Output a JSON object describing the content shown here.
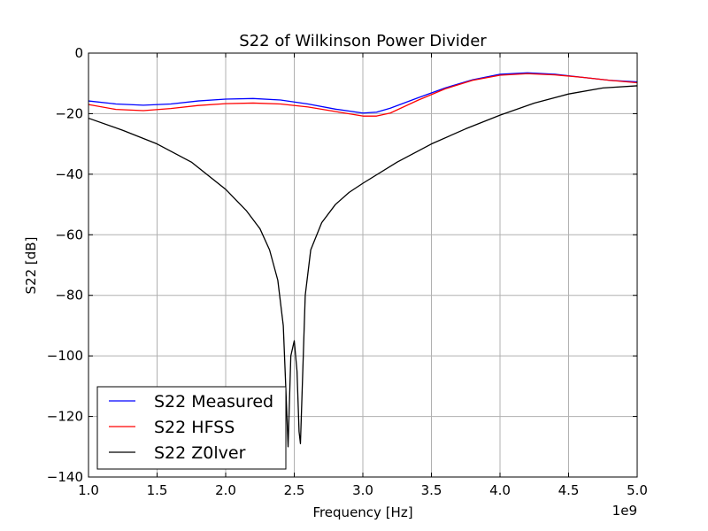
{
  "chart_data": {
    "type": "line",
    "title": "S22 of Wilkinson Power Divider",
    "xlabel": "Frequency [Hz]",
    "ylabel": "S22 [dB]",
    "x_offset_label": "1e9",
    "xlim": [
      1.0,
      5.0
    ],
    "ylim": [
      -140,
      0
    ],
    "x_ticks": [
      1.0,
      1.5,
      2.0,
      2.5,
      3.0,
      3.5,
      4.0,
      4.5,
      5.0
    ],
    "x_tick_labels": [
      "1.0",
      "1.5",
      "2.0",
      "2.5",
      "3.0",
      "3.5",
      "4.0",
      "4.5",
      "5.0"
    ],
    "y_ticks": [
      0,
      -20,
      -40,
      -60,
      -80,
      -100,
      -120,
      -140
    ],
    "y_tick_labels": [
      "0",
      "−20",
      "−40",
      "−60",
      "−80",
      "−100",
      "−120",
      "−140"
    ],
    "grid": true,
    "legend_position": "lower-left",
    "series": [
      {
        "name": "S22 Measured",
        "color": "#0000ff",
        "x": [
          1.0,
          1.2,
          1.4,
          1.6,
          1.8,
          2.0,
          2.2,
          2.4,
          2.6,
          2.8,
          3.0,
          3.1,
          3.2,
          3.4,
          3.6,
          3.8,
          4.0,
          4.2,
          4.4,
          4.6,
          4.8,
          5.0
        ],
        "y": [
          -15.8,
          -16.8,
          -17.2,
          -16.8,
          -15.8,
          -15.2,
          -15.0,
          -15.5,
          -16.8,
          -18.5,
          -19.8,
          -19.5,
          -18.2,
          -14.8,
          -11.5,
          -8.8,
          -7.0,
          -6.5,
          -7.0,
          -8.0,
          -9.0,
          -9.5
        ]
      },
      {
        "name": "S22 HFSS",
        "color": "#ff0000",
        "x": [
          1.0,
          1.2,
          1.4,
          1.6,
          1.8,
          2.0,
          2.2,
          2.4,
          2.6,
          2.8,
          3.0,
          3.1,
          3.2,
          3.4,
          3.6,
          3.8,
          4.0,
          4.2,
          4.4,
          4.6,
          4.8,
          5.0
        ],
        "y": [
          -17.0,
          -18.6,
          -19.0,
          -18.3,
          -17.3,
          -16.7,
          -16.5,
          -16.8,
          -17.8,
          -19.3,
          -20.8,
          -20.8,
          -19.8,
          -15.6,
          -11.8,
          -9.0,
          -7.3,
          -6.8,
          -7.2,
          -8.0,
          -9.0,
          -9.8
        ]
      },
      {
        "name": "S22 Z0lver",
        "color": "#000000",
        "x": [
          1.0,
          1.25,
          1.5,
          1.75,
          2.0,
          2.15,
          2.25,
          2.32,
          2.38,
          2.42,
          2.445,
          2.455,
          2.475,
          2.5,
          2.52,
          2.535,
          2.545,
          2.58,
          2.62,
          2.7,
          2.8,
          2.9,
          3.0,
          3.25,
          3.5,
          3.75,
          4.0,
          4.25,
          4.5,
          4.75,
          5.0
        ],
        "y": [
          -21.5,
          -25.5,
          -30.0,
          -36.0,
          -45.0,
          -52.0,
          -58.0,
          -65.0,
          -75.0,
          -90.0,
          -118.0,
          -130.0,
          -100.0,
          -95.0,
          -105.0,
          -125.0,
          -129.0,
          -80.0,
          -65.0,
          -56.0,
          -50.0,
          -46.0,
          -43.0,
          -36.0,
          -30.0,
          -25.0,
          -20.5,
          -16.5,
          -13.5,
          -11.5,
          -10.8
        ]
      }
    ]
  }
}
